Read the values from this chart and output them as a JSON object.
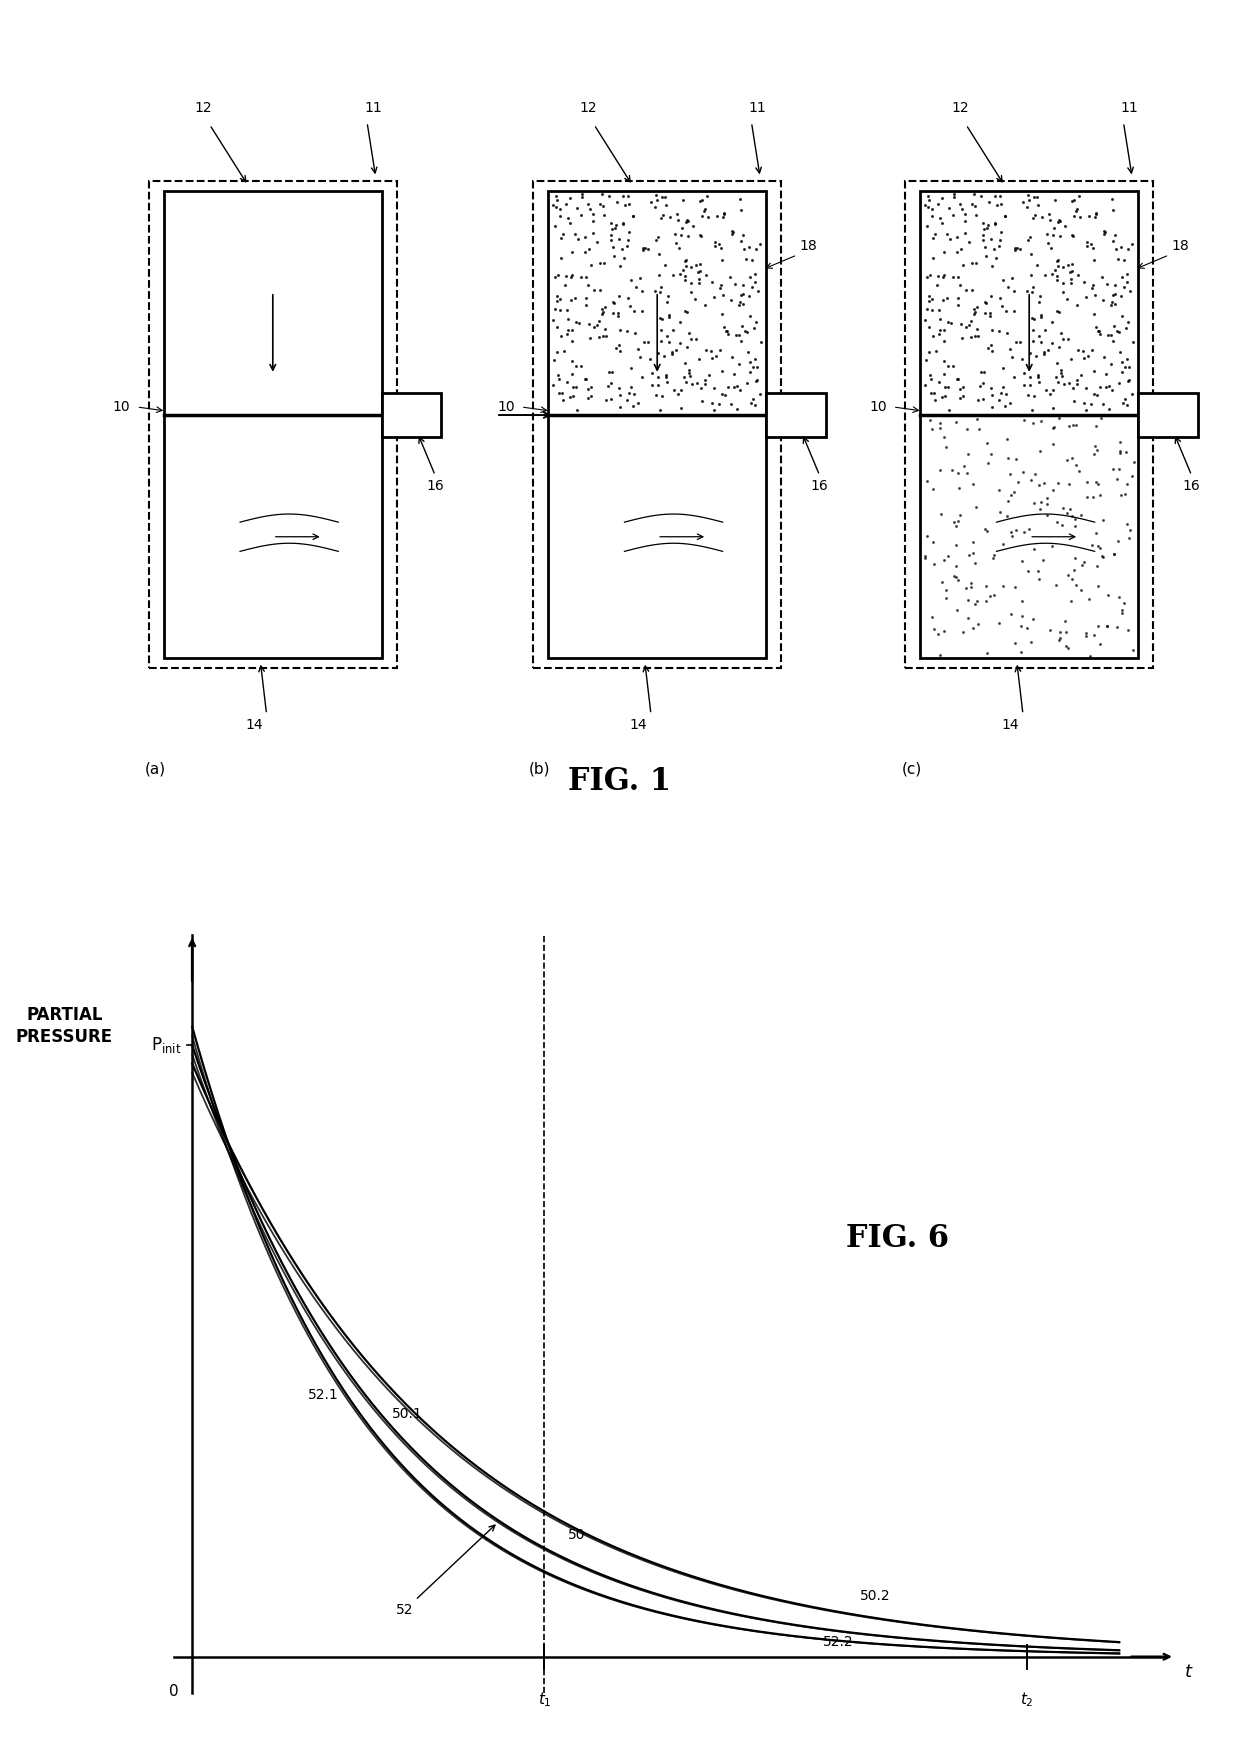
{
  "bg_color": "#ffffff",
  "fig1_title": "FIG. 1",
  "fig6_title": "FIG. 6",
  "ylabel_line1": "PARTIAL",
  "ylabel_line2": "PRESSURE",
  "xlabel_t": "t",
  "pinit_label": "P",
  "pinit_sub": "init",
  "t1_label": "t",
  "t1_sub": "1",
  "t2_label": "t",
  "t2_sub": "2",
  "curve50_label": "50",
  "curve501_label": "50.1",
  "curve502_label": "50.2",
  "curve52_label": "52",
  "curve521_label": "52.1",
  "curve522_label": "52.2",
  "subplots": [
    "(a)",
    "(b)",
    "(c)"
  ],
  "line_color": "#000000",
  "curve_color": "#000000",
  "tau50": 2.2,
  "tau501": 1.9,
  "tau502": 2.7,
  "tau52": 2.2,
  "tau521": 1.9,
  "tau522": 2.7,
  "amp50": 1.0,
  "amp501": 1.03,
  "amp502": 0.97,
  "amp52": 0.985,
  "amp521": 1.015,
  "amp522": 0.955,
  "t_max": 10.0,
  "t1_val": 3.8,
  "t2_val": 9.0
}
